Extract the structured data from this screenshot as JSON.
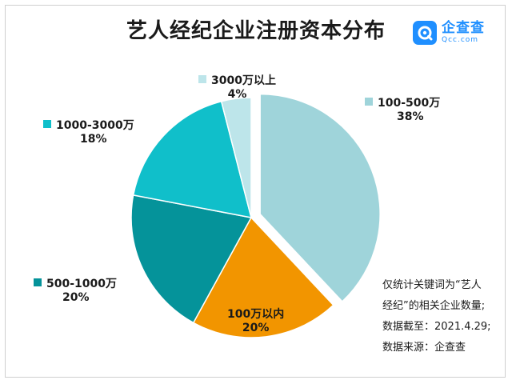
{
  "title": "艺人经纪企业注册资本分布",
  "logo": {
    "main": "企查查",
    "sub": "Qcc.com"
  },
  "chart_data": {
    "type": "pie",
    "title": "艺人经纪企业注册资本分布",
    "categories": [
      "100-500万",
      "100万以内",
      "500-1000万",
      "1000-3000万",
      "3000万以上"
    ],
    "values": [
      38,
      20,
      20,
      18,
      4
    ],
    "unit": "%",
    "colors": [
      "#9fd4da",
      "#f29500",
      "#05939a",
      "#10bfca",
      "#bde5ea"
    ],
    "exploded": "100-500万",
    "legend_labels": [
      {
        "name": "3000万以上",
        "pct": "4%"
      },
      {
        "name": "100-500万",
        "pct": "38%"
      },
      {
        "name": "1000-3000万",
        "pct": "18%"
      },
      {
        "name": "500-1000万",
        "pct": "20%"
      },
      {
        "name": "100万以内",
        "pct": "20%"
      }
    ]
  },
  "notes": [
    "仅统计关键词为“艺人",
    "经纪”的相关企业数量;",
    "数据截至：2021.4.29;",
    "数据来源：企查查"
  ]
}
